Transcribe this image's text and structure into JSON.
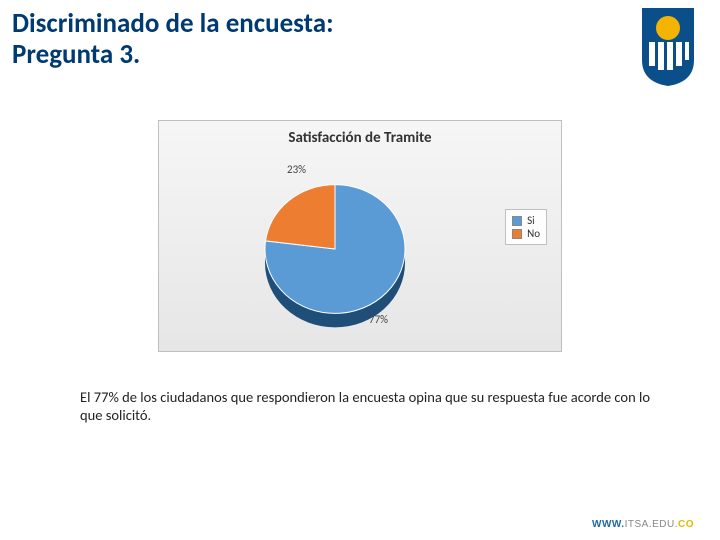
{
  "title": {
    "line1": "Discriminado de la encuesta:",
    "line2": "Pregunta 3.",
    "color": "#003a73",
    "fontsize": 27
  },
  "logo": {
    "shield_color": "#0b4f8a",
    "circle_color": "#f2b400",
    "stripe_color": "#ffffff"
  },
  "chart": {
    "type": "pie",
    "title": "Satisfacción de Tramite",
    "title_fontsize": 15,
    "slices": [
      {
        "name": "Si",
        "value": 77,
        "pct_label": "77%",
        "color": "#5b9bd5"
      },
      {
        "name": "No",
        "value": 23,
        "pct_label": "23%",
        "color": "#ed7d31"
      }
    ],
    "side_color": "#1f4e79",
    "bg_gradient_top": "#f6f6f6",
    "bg_gradient_bottom": "#e6e6e6",
    "border_color": "#bfbfbf",
    "legend": {
      "border_color": "#bfbfbf",
      "fontsize": 11
    },
    "label_fontsize": 11
  },
  "body_text": "El 77% de los ciudadanos que respondieron la encuesta opina que su respuesta fue acorde con lo que solicitó.",
  "footer": {
    "www": "WWW.",
    "domain": "ITSA.EDU.",
    "tld": "CO"
  }
}
